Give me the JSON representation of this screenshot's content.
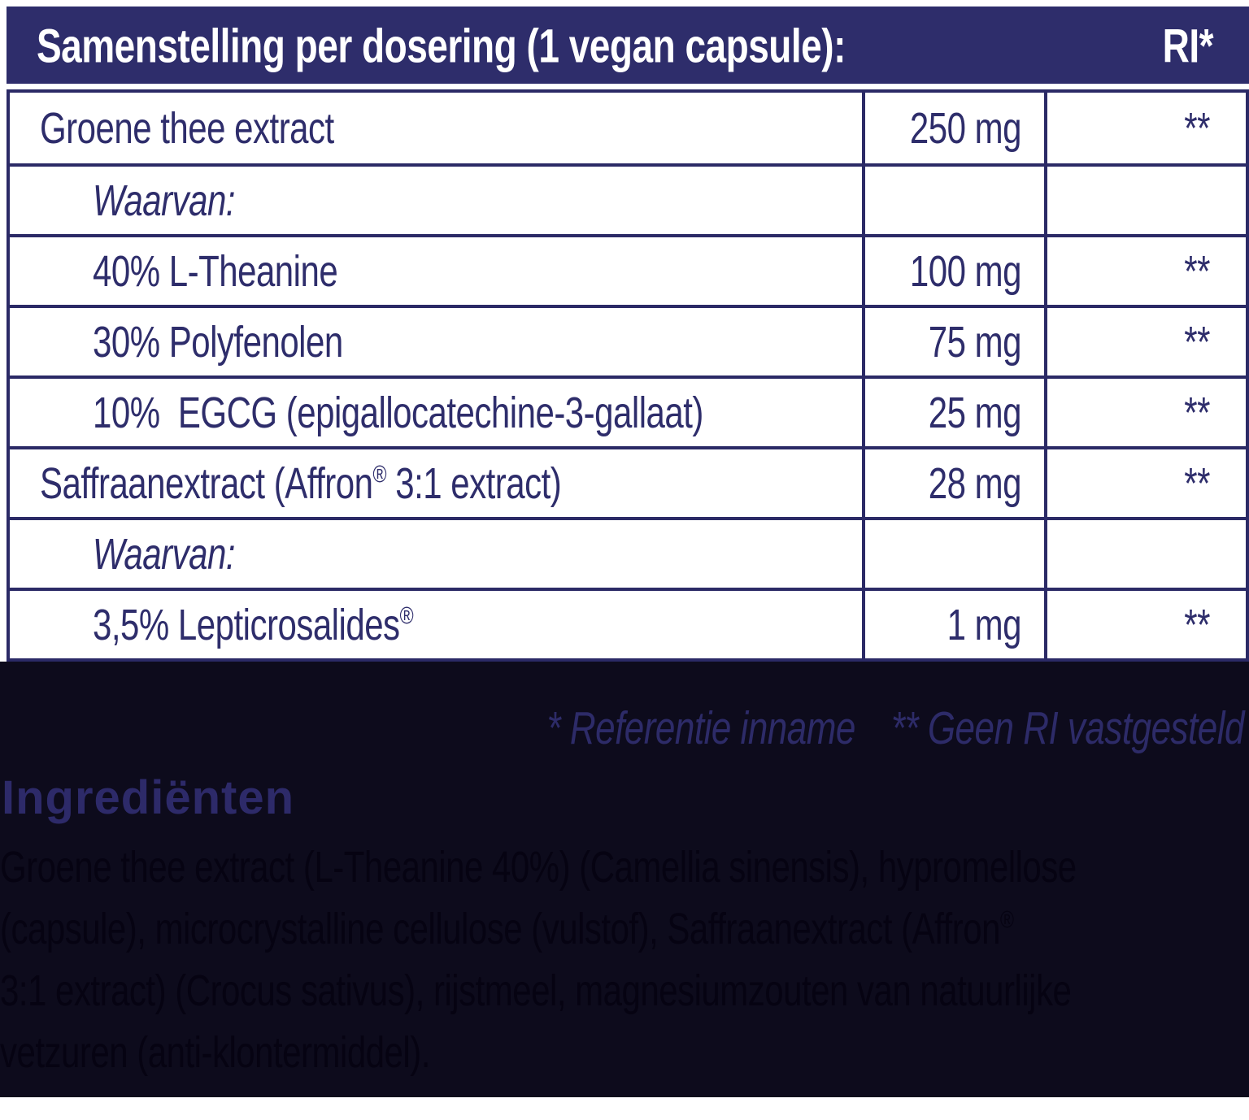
{
  "label_table": {
    "header": {
      "title": "Samenstelling per dosering (1 vegan capsule):",
      "ri_column_label": "RI*"
    },
    "rows": [
      {
        "ingredient": "Groene thee extract",
        "amount": "250 mg",
        "ri": "**"
      },
      {
        "ingredient": "Waarvan:",
        "amount": "",
        "ri": ""
      },
      {
        "ingredient": "40% L-Theanine",
        "amount": "100 mg",
        "ri": "**"
      },
      {
        "ingredient": "30% Polyfenolen",
        "amount": "75 mg",
        "ri": "**"
      },
      {
        "ingredient": "10%  EGCG (epigallocatechine-3-gallaat)",
        "amount": "25 mg",
        "ri": "**"
      },
      {
        "ingredient": "Saffraanextract (Affron® 3:1 extract)",
        "amount": "28 mg",
        "ri": "**"
      },
      {
        "ingredient": "Waarvan:",
        "amount": "",
        "ri": ""
      },
      {
        "ingredient": "3,5% Lepticrosalides®",
        "amount": "1 mg",
        "ri": "**"
      }
    ]
  },
  "footnotes": {
    "reference_intake": "* Referentie inname",
    "no_ri_set": "** Geen RI vastgesteld"
  },
  "ingredients_section": {
    "heading": "Ingrediënten",
    "lines": [
      "Groene thee extract (L-Theanine 40%) (Camellia sinensis), hypromellose",
      "(capsule), microcrystalline cellulose (vulstof), Saffraanextract (Affron®",
      "3:1 extract) (Crocus sativus), rijstmeel, magnesiumzouten van natuurlijke",
      "vetzuren (anti-klontermiddel)."
    ]
  },
  "colors": {
    "header-bg": "#2e2d6b",
    "table-border": "#2b2a66",
    "table-text": "#2e2d6b",
    "header-text": "#ffffff",
    "dark-bg": "#0d0b1c",
    "footnote-text": "#2d2b68",
    "heading-text": "#2d2a69",
    "paragraph-text": "#060312"
  }
}
